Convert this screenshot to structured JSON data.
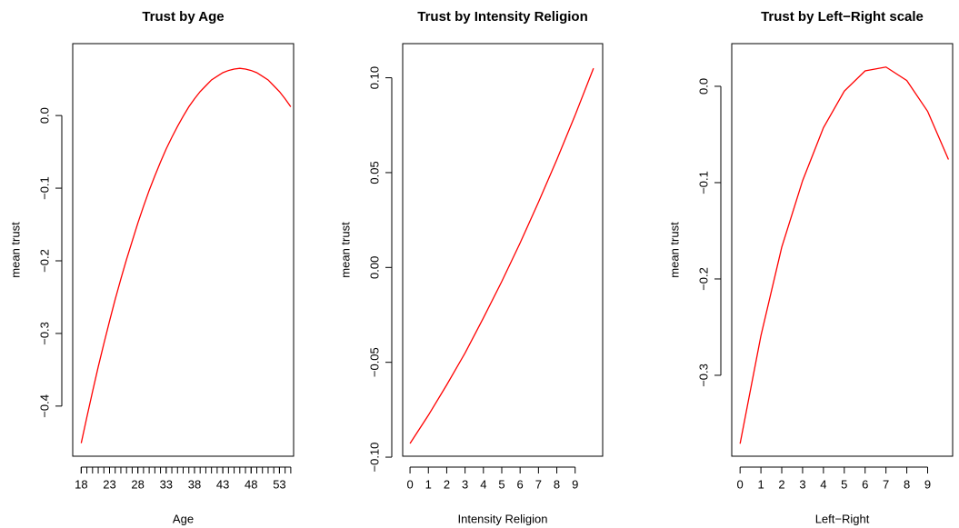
{
  "chart_data": [
    {
      "type": "line",
      "title": "Trust by Age",
      "xlabel": "Age",
      "ylabel": "mean trust",
      "color": "#ff0000",
      "x": [
        18,
        19,
        20,
        21,
        22,
        23,
        24,
        25,
        26,
        27,
        28,
        29,
        30,
        31,
        32,
        33,
        34,
        35,
        36,
        37,
        38,
        39,
        40,
        41,
        42,
        43,
        44,
        45,
        46,
        47,
        48,
        49,
        50,
        51,
        52,
        53,
        54,
        55
      ],
      "values": [
        -0.451,
        -0.415,
        -0.38,
        -0.346,
        -0.314,
        -0.283,
        -0.253,
        -0.225,
        -0.198,
        -0.173,
        -0.148,
        -0.125,
        -0.103,
        -0.083,
        -0.064,
        -0.046,
        -0.03,
        -0.015,
        -0.001,
        0.012,
        0.023,
        0.033,
        0.041,
        0.049,
        0.054,
        0.059,
        0.062,
        0.064,
        0.065,
        0.064,
        0.062,
        0.059,
        0.054,
        0.049,
        0.041,
        0.033,
        0.023,
        0.012
      ],
      "xlim": [
        16.5,
        55.5
      ],
      "ylim": [
        -0.469,
        0.099
      ],
      "xticks": [
        18,
        23,
        28,
        33,
        38,
        43,
        48,
        53
      ],
      "xminorticks": [
        18,
        19,
        20,
        21,
        22,
        23,
        24,
        25,
        26,
        27,
        28,
        29,
        30,
        31,
        32,
        33,
        34,
        35,
        36,
        37,
        38,
        39,
        40,
        41,
        42,
        43,
        44,
        45,
        46,
        47,
        48,
        49,
        50,
        51,
        52,
        53,
        54,
        55
      ],
      "yticks": [
        {
          "value": -0.4,
          "label": "−0.4"
        },
        {
          "value": -0.3,
          "label": "−0.3"
        },
        {
          "value": -0.2,
          "label": "−0.2"
        },
        {
          "value": -0.1,
          "label": "−0.1"
        },
        {
          "value": 0,
          "label": "0.0"
        }
      ]
    },
    {
      "type": "line",
      "title": "Trust by Intensity Religion",
      "xlabel": "Intensity Religion",
      "ylabel": "mean trust",
      "color": "#ff0000",
      "x": [
        0,
        1,
        2,
        3,
        4,
        5,
        6,
        7,
        8,
        9,
        10
      ],
      "values": [
        -0.0928,
        -0.0779,
        -0.0619,
        -0.0451,
        -0.0266,
        -0.0074,
        0.0129,
        0.0344,
        0.0568,
        0.0803,
        0.105
      ],
      "xlim": [
        -0.4,
        10.5
      ],
      "ylim": [
        -0.0995,
        0.118
      ],
      "xticks": [
        0,
        1,
        2,
        3,
        4,
        5,
        6,
        7,
        8,
        9
      ],
      "yticks": [
        {
          "value": -0.1,
          "label": "−0.10"
        },
        {
          "value": -0.05,
          "label": "−0.05"
        },
        {
          "value": 0,
          "label": "0.00"
        },
        {
          "value": 0.05,
          "label": "0.05"
        },
        {
          "value": 0.1,
          "label": "0.10"
        }
      ]
    },
    {
      "type": "line",
      "title": "Trust by Left−Right scale",
      "xlabel": "Left−Right",
      "ylabel": "mean trust",
      "color": "#ff0000",
      "x": [
        0,
        1,
        2,
        3,
        4,
        5,
        6,
        7,
        8,
        9,
        10
      ],
      "values": [
        -0.371,
        -0.259,
        -0.167,
        -0.098,
        -0.043,
        -0.005,
        0.016,
        0.02,
        0.006,
        -0.026,
        -0.076
      ],
      "xlim": [
        -0.4,
        10.2
      ],
      "ylim": [
        -0.384,
        0.0443
      ],
      "xticks": [
        0,
        1,
        2,
        3,
        4,
        5,
        6,
        7,
        8,
        9
      ],
      "yticks": [
        {
          "value": -0.3,
          "label": "−0.3"
        },
        {
          "value": -0.2,
          "label": "−0.2"
        },
        {
          "value": -0.1,
          "label": "−0.1"
        },
        {
          "value": 0,
          "label": "0.0"
        }
      ]
    }
  ]
}
